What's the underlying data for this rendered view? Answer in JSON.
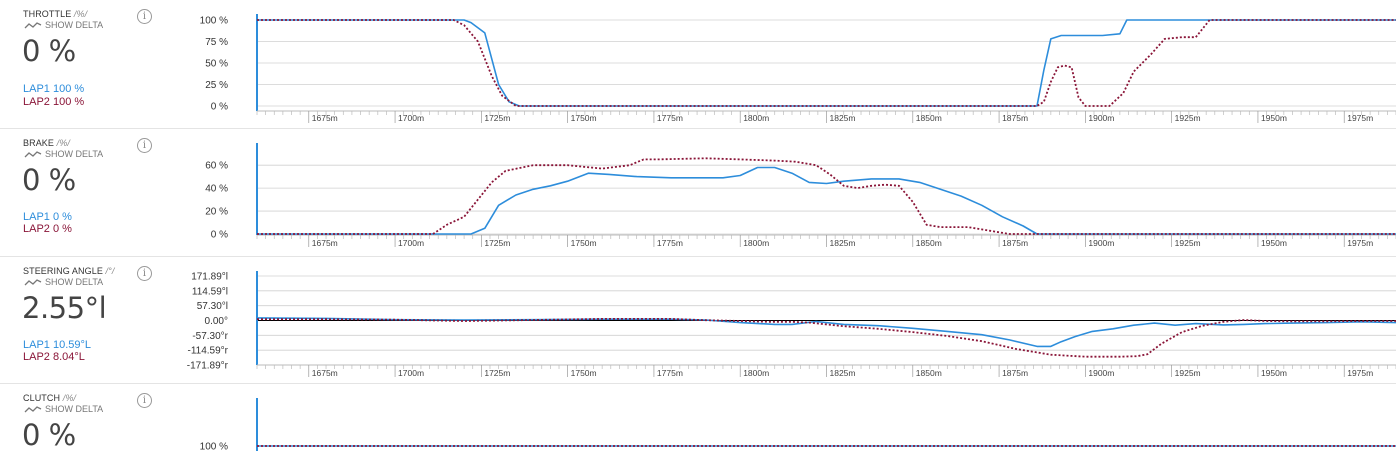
{
  "ui": {
    "show_delta_label": "SHOW DELTA"
  },
  "colors": {
    "lap1": "#2d8ddb",
    "lap2": "#8a1538",
    "grid": "#d0d0d0",
    "zero_line": "#000000"
  },
  "x_axis": {
    "range": [
      1660,
      1990
    ],
    "ticks": [
      1675,
      1700,
      1725,
      1750,
      1775,
      1800,
      1825,
      1850,
      1875,
      1900,
      1925,
      1950,
      1975
    ],
    "tick_labels": [
      "1675m",
      "1700m",
      "1725m",
      "1750m",
      "1775m",
      "1800m",
      "1825m",
      "1850m",
      "1875m",
      "1900m",
      "1925m",
      "1950m",
      "1975m"
    ]
  },
  "panels": [
    {
      "id": "throttle",
      "title": "THROTTLE",
      "unit": "/%/",
      "value": "0 %",
      "lap1_label": "LAP1 100 %",
      "lap2_label": "LAP2 100 %"
    },
    {
      "id": "brake",
      "title": "BRAKE",
      "unit": "/%/",
      "value": "0 %",
      "lap1_label": "LAP1 0 %",
      "lap2_label": "LAP2 0 %"
    },
    {
      "id": "steering",
      "title": "STEERING ANGLE",
      "unit": "/°/",
      "value": "2.55°l",
      "lap1_label": "LAP1 10.59°L",
      "lap2_label": "LAP2 8.04°L"
    },
    {
      "id": "clutch",
      "title": "CLUTCH",
      "unit": "/%/",
      "value": "0 %",
      "lap1_label": "",
      "lap2_label": ""
    }
  ],
  "chart_data": [
    {
      "type": "line",
      "id": "throttle",
      "ylim": [
        0,
        100
      ],
      "yticks": [
        0,
        25,
        50,
        75,
        100
      ],
      "ytick_labels": [
        "0 %",
        "25 %",
        "50 %",
        "75 %",
        "100 %"
      ],
      "xlim": [
        1660,
        1990
      ],
      "series": [
        {
          "name": "LAP1",
          "x": [
            1660,
            1720,
            1722,
            1726,
            1728,
            1730,
            1733,
            1736,
            1886,
            1888,
            1890,
            1893,
            1896,
            1900,
            1905,
            1910,
            1912,
            1920,
            1990
          ],
          "y": [
            100,
            100,
            97,
            85,
            55,
            25,
            5,
            0,
            0,
            42,
            78,
            82,
            82,
            82,
            82,
            84,
            100,
            100,
            100
          ]
        },
        {
          "name": "LAP2",
          "x": [
            1660,
            1717,
            1720,
            1724,
            1728,
            1731,
            1735,
            1886,
            1888,
            1890,
            1892,
            1894,
            1896,
            1898,
            1900,
            1903,
            1907,
            1911,
            1914,
            1917,
            1919,
            1923,
            1928,
            1932,
            1936,
            1990
          ],
          "y": [
            100,
            100,
            94,
            75,
            35,
            12,
            0,
            0,
            5,
            28,
            45,
            47,
            45,
            10,
            0,
            0,
            0,
            15,
            40,
            52,
            60,
            78,
            80,
            80,
            100,
            100
          ]
        }
      ]
    },
    {
      "type": "line",
      "id": "brake",
      "ylim": [
        0,
        68
      ],
      "yticks": [
        0,
        20,
        40,
        60
      ],
      "ytick_labels": [
        "0 %",
        "20 %",
        "40 %",
        "60 %"
      ],
      "xlim": [
        1660,
        1990
      ],
      "series": [
        {
          "name": "LAP1",
          "x": [
            1660,
            1722,
            1726,
            1730,
            1735,
            1740,
            1745,
            1750,
            1756,
            1762,
            1770,
            1780,
            1788,
            1795,
            1800,
            1805,
            1810,
            1815,
            1820,
            1825,
            1830,
            1838,
            1846,
            1852,
            1858,
            1864,
            1870,
            1876,
            1882,
            1886,
            1990
          ],
          "y": [
            0,
            0,
            5,
            25,
            34,
            39,
            42,
            46,
            53,
            52,
            50,
            49,
            49,
            49,
            51,
            58,
            58,
            53,
            45,
            44,
            46,
            48,
            48,
            45,
            39,
            33,
            25,
            15,
            7,
            0,
            0
          ]
        },
        {
          "name": "LAP2",
          "x": [
            1660,
            1711,
            1715,
            1720,
            1724,
            1728,
            1732,
            1740,
            1750,
            1760,
            1768,
            1772,
            1776,
            1790,
            1800,
            1810,
            1816,
            1822,
            1826,
            1830,
            1834,
            1838,
            1842,
            1846,
            1850,
            1854,
            1858,
            1862,
            1866,
            1870,
            1874,
            1878,
            1990
          ],
          "y": [
            0,
            0,
            8,
            15,
            30,
            45,
            55,
            60,
            60,
            57,
            60,
            65,
            65,
            66,
            65,
            64,
            63,
            60,
            52,
            42,
            40,
            42,
            43,
            42,
            28,
            8,
            6,
            6,
            6,
            4,
            2,
            0,
            0
          ]
        }
      ]
    },
    {
      "type": "line",
      "id": "steering",
      "ylim": [
        -171.89,
        171.89
      ],
      "yticks": [
        171.89,
        114.59,
        57.3,
        0,
        -57.3,
        -114.59,
        -171.89
      ],
      "ytick_labels": [
        "171.89°l",
        "114.59°l",
        "57.30°l",
        "0.00°",
        "-57.30°r",
        "-114.59°r",
        "-171.89°r"
      ],
      "xlim": [
        1660,
        1990
      ],
      "series": [
        {
          "name": "LAP1",
          "x": [
            1660,
            1680,
            1700,
            1720,
            1740,
            1760,
            1780,
            1790,
            1800,
            1810,
            1815,
            1822,
            1830,
            1840,
            1850,
            1860,
            1870,
            1878,
            1886,
            1890,
            1893,
            1897,
            1902,
            1908,
            1914,
            1920,
            1926,
            1932,
            1940,
            1946,
            1952,
            1960,
            1970,
            1980,
            1990
          ],
          "y": [
            10,
            8,
            3,
            2,
            3,
            5,
            5,
            2,
            -8,
            -15,
            -15,
            -4,
            -15,
            -20,
            -30,
            -42,
            -55,
            -75,
            -100,
            -100,
            -82,
            -62,
            -42,
            -32,
            -18,
            -10,
            -18,
            -12,
            -17,
            -15,
            -12,
            -10,
            -8,
            -5,
            -8
          ]
        },
        {
          "name": "LAP2",
          "x": [
            1660,
            1680,
            1700,
            1720,
            1740,
            1760,
            1780,
            1790,
            1800,
            1808,
            1815,
            1820,
            1830,
            1840,
            1850,
            1860,
            1870,
            1880,
            1890,
            1900,
            1910,
            1915,
            1918,
            1922,
            1928,
            1934,
            1940,
            1946,
            1952,
            1960,
            1970,
            1980,
            1990
          ],
          "y": [
            5,
            5,
            3,
            -2,
            2,
            6,
            6,
            1,
            -2,
            -5,
            -5,
            -8,
            -22,
            -32,
            -45,
            -60,
            -80,
            -110,
            -132,
            -140,
            -140,
            -138,
            -130,
            -90,
            -45,
            -20,
            -5,
            2,
            -2,
            -3,
            -3,
            -2,
            -2
          ]
        }
      ]
    },
    {
      "type": "line",
      "id": "clutch",
      "ylim": [
        0,
        100
      ],
      "yticks": [
        100
      ],
      "ytick_labels": [
        "100 %"
      ],
      "xlim": [
        1660,
        1990
      ],
      "series": [
        {
          "name": "LAP1",
          "x": [
            1660,
            1990
          ],
          "y": [
            100,
            100
          ]
        },
        {
          "name": "LAP2",
          "x": [
            1660,
            1990
          ],
          "y": [
            100,
            100
          ]
        }
      ]
    }
  ]
}
